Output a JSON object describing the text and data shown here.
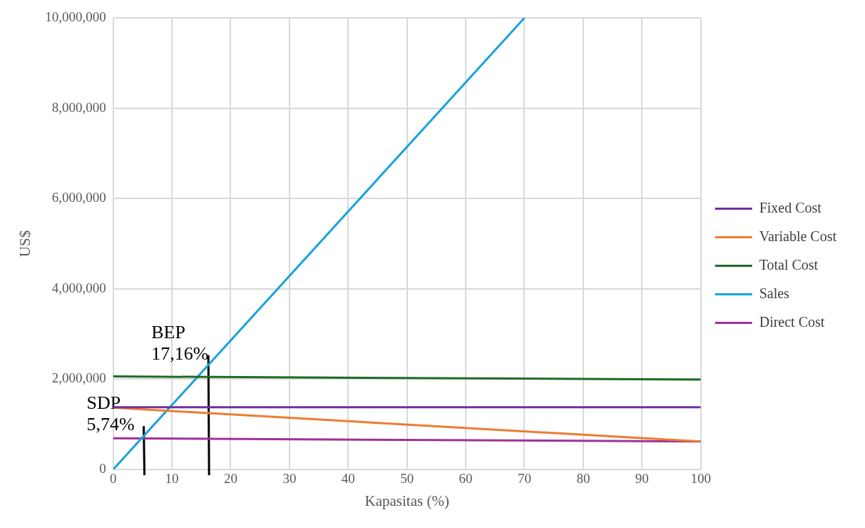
{
  "chart_data": {
    "type": "line",
    "xlabel": "Kapasitas (%)",
    "ylabel": "US$",
    "xlim": [
      0,
      100
    ],
    "xticks": [
      0,
      10,
      20,
      30,
      40,
      50,
      60,
      70,
      80,
      90,
      100
    ],
    "ylim": [
      0,
      10000000
    ],
    "yticks": [
      0,
      {
        "value": 2000000,
        "label": "2,000,000"
      },
      {
        "value": 4000000,
        "label": "4,000,000"
      },
      {
        "value": 6000000,
        "label": "6,000,000"
      },
      {
        "value": 8000000,
        "label": "8,000,000"
      },
      {
        "value": 10000000,
        "label": "10,000,000"
      }
    ],
    "grid": true,
    "legend": "right",
    "marker": "none",
    "line_style": "solid",
    "series": [
      {
        "name": "Fixed Cost",
        "color": "#7030a0",
        "x": [
          0,
          100
        ],
        "values": [
          1380000,
          1380000
        ]
      },
      {
        "name": "Variable Cost",
        "color": "#ed7d31",
        "x": [
          0,
          100
        ],
        "values": [
          1370000,
          620000
        ]
      },
      {
        "name": "Total Cost",
        "color": "#1e6b24",
        "x": [
          0,
          100
        ],
        "values": [
          2060000,
          1990000
        ]
      },
      {
        "name": "Sales",
        "color": "#1aa3d9",
        "x": [
          0,
          70
        ],
        "values": [
          0,
          10000000
        ]
      },
      {
        "name": "Direct Cost",
        "color": "#a0309a",
        "x": [
          0,
          100
        ],
        "values": [
          690000,
          620000
        ]
      }
    ],
    "annotations": [
      {
        "text": "BEP\n17,16%",
        "x": 16.2,
        "y": 2310000
      },
      {
        "text": "SDP\n5,74%",
        "x": 5.2,
        "y": 740000
      }
    ]
  }
}
